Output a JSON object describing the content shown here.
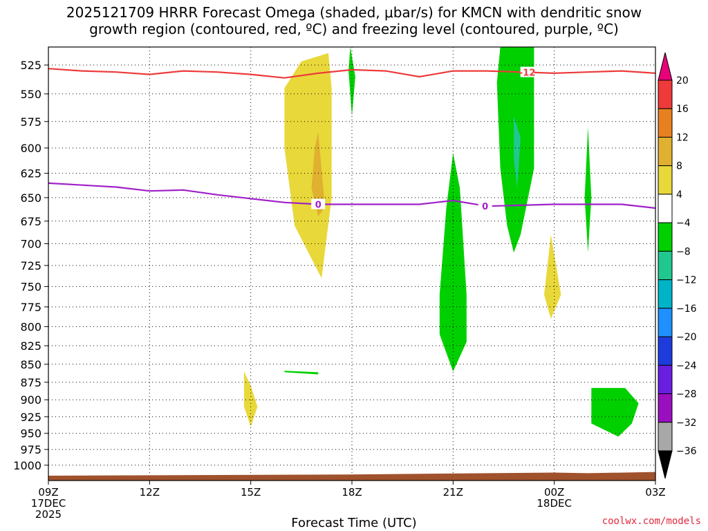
{
  "title_line1": "2025121709 HRRR Forecast Omega (shaded, μbar/s) for KMCN with dendritic snow",
  "title_line2": "growth region (contoured, red, ºC) and freezing level (contoured, purple, ºC)",
  "credit": "coolwx.com/models",
  "chart_data": {
    "type": "heatmap",
    "title": "2025121709 HRRR Forecast Omega (shaded, μbar/s) for KMCN with dendritic snow growth region (contoured, red, ºC) and freezing level (contoured, purple, ºC)",
    "xlabel": "Forecast Time (UTC)",
    "ylabel": "",
    "x_ticks": [
      {
        "hour": 0,
        "lines": [
          "09Z",
          "17DEC",
          "2025"
        ]
      },
      {
        "hour": 3,
        "lines": [
          "12Z"
        ]
      },
      {
        "hour": 6,
        "lines": [
          "15Z"
        ]
      },
      {
        "hour": 9,
        "lines": [
          "18Z"
        ]
      },
      {
        "hour": 12,
        "lines": [
          "21Z"
        ]
      },
      {
        "hour": 15,
        "lines": [
          "00Z",
          "18DEC"
        ]
      },
      {
        "hour": 18,
        "lines": [
          "03Z"
        ]
      }
    ],
    "xlim_hours": [
      0,
      18
    ],
    "y_levels_hpa": [
      525,
      550,
      575,
      600,
      625,
      650,
      675,
      700,
      725,
      750,
      775,
      800,
      825,
      850,
      875,
      900,
      925,
      950,
      975,
      1000
    ],
    "ylim_hpa": [
      510,
      1025
    ],
    "y_scale": "log",
    "grid": true,
    "colorbar": {
      "ticks": [
        "20",
        "16",
        "12",
        "8",
        "4",
        "−4",
        "−8",
        "−12",
        "−16",
        "−20",
        "−24",
        "−28",
        "−32",
        "−36"
      ],
      "colors": [
        "#e8007a",
        "#ee3a3a",
        "#e88020",
        "#e0b030",
        "#e8d83a",
        "#ffffff",
        "#00d000",
        "#20c890",
        "#00b4c8",
        "#1e90ff",
        "#1e3cdc",
        "#6a1ee0",
        "#9a10c0",
        "#a8a8a8",
        "#000000"
      ]
    },
    "contours": [
      {
        "label": "-12",
        "color": "#ee3a3a",
        "label_hour": 14.2,
        "points": [
          [
            0,
            528
          ],
          [
            1,
            530
          ],
          [
            2,
            531
          ],
          [
            3,
            533
          ],
          [
            4,
            530
          ],
          [
            5,
            531
          ],
          [
            6,
            533
          ],
          [
            7,
            536
          ],
          [
            8,
            532
          ],
          [
            9,
            529
          ],
          [
            10,
            530
          ],
          [
            11,
            535
          ],
          [
            12,
            530
          ],
          [
            13,
            530
          ],
          [
            14,
            531
          ],
          [
            15,
            532
          ],
          [
            16,
            531
          ],
          [
            17,
            530
          ],
          [
            18,
            532
          ]
        ]
      },
      {
        "label": "0",
        "color": "#a020c8",
        "label_hour": 12.95,
        "points": [
          [
            0,
            635
          ],
          [
            1,
            637
          ],
          [
            2,
            639
          ],
          [
            3,
            643
          ],
          [
            4,
            642
          ],
          [
            5,
            647
          ],
          [
            6,
            651
          ],
          [
            7,
            655
          ],
          [
            8,
            657
          ],
          [
            9,
            657
          ],
          [
            10,
            657
          ],
          [
            11,
            657
          ],
          [
            12,
            653
          ],
          [
            13,
            659
          ],
          [
            14,
            658
          ],
          [
            15,
            657
          ],
          [
            16,
            657
          ],
          [
            17,
            657
          ],
          [
            18,
            661
          ]
        ]
      }
    ],
    "contour_label_hour_secondary": 8.0,
    "shaded_regions": [
      {
        "class": "4 to 8",
        "color": "#e8d83a",
        "outline": [
          [
            7.0,
            545
          ],
          [
            7.5,
            522
          ],
          [
            8.3,
            515
          ],
          [
            8.4,
            545
          ],
          [
            8.4,
            650
          ],
          [
            8.1,
            740
          ],
          [
            7.3,
            680
          ],
          [
            7.0,
            600
          ]
        ]
      },
      {
        "class": "8 to 12",
        "color": "#e0b030",
        "outline": [
          [
            8.0,
            585
          ],
          [
            8.2,
            660
          ],
          [
            8.0,
            670
          ],
          [
            7.8,
            640
          ],
          [
            7.9,
            600
          ]
        ]
      },
      {
        "class": "4 to 8",
        "color": "#e8d83a",
        "outline": [
          [
            5.8,
            860
          ],
          [
            6.0,
            880
          ],
          [
            6.2,
            910
          ],
          [
            6.0,
            940
          ],
          [
            5.8,
            910
          ],
          [
            5.8,
            880
          ]
        ]
      },
      {
        "class": "4 to 8",
        "color": "#e8d83a",
        "outline": [
          [
            14.9,
            690
          ],
          [
            15.2,
            760
          ],
          [
            14.9,
            790
          ],
          [
            14.7,
            760
          ]
        ]
      },
      {
        "class": "-4 to -8",
        "color": "#00d000",
        "outline": [
          [
            8.95,
            510
          ],
          [
            9.1,
            535
          ],
          [
            9.0,
            570
          ],
          [
            8.9,
            530
          ]
        ]
      },
      {
        "class": "-4 to -8",
        "color": "#00d000",
        "outline": [
          [
            12.0,
            605
          ],
          [
            12.2,
            640
          ],
          [
            12.4,
            760
          ],
          [
            12.4,
            820
          ],
          [
            12.0,
            860
          ],
          [
            11.6,
            810
          ],
          [
            11.6,
            760
          ],
          [
            11.8,
            660
          ]
        ]
      },
      {
        "class": "-4 to -8",
        "color": "#00d000",
        "outline": [
          [
            13.4,
            510
          ],
          [
            14.4,
            510
          ],
          [
            14.4,
            620
          ],
          [
            14.0,
            690
          ],
          [
            13.8,
            710
          ],
          [
            13.6,
            680
          ],
          [
            13.4,
            620
          ],
          [
            13.3,
            540
          ]
        ]
      },
      {
        "class": "-8 to -12",
        "color": "#20c890",
        "outline": [
          [
            13.8,
            570
          ],
          [
            14.0,
            590
          ],
          [
            13.9,
            640
          ],
          [
            13.8,
            610
          ]
        ]
      },
      {
        "class": "-4 to -8",
        "color": "#00d000",
        "outline": [
          [
            16.0,
            580
          ],
          [
            16.1,
            650
          ],
          [
            16.0,
            710
          ],
          [
            15.9,
            650
          ]
        ]
      },
      {
        "class": "-4 to -8",
        "color": "#00d000",
        "outline": [
          [
            16.1,
            883
          ],
          [
            17.1,
            883
          ],
          [
            17.5,
            905
          ],
          [
            17.3,
            935
          ],
          [
            16.9,
            955
          ],
          [
            16.1,
            935
          ]
        ]
      },
      {
        "class": "-4 to -8",
        "color": "#00d000",
        "outline": [
          [
            7.0,
            859
          ],
          [
            8.0,
            861
          ],
          [
            8.0,
            864
          ],
          [
            7.0,
            861
          ]
        ]
      }
    ],
    "surface_terrain": {
      "color": "#a0522d",
      "top_pressure_hpa": [
        [
          0,
          1017
        ],
        [
          9,
          1015
        ],
        [
          15,
          1012
        ],
        [
          16,
          1013
        ],
        [
          18,
          1011
        ]
      ]
    }
  },
  "x_axis_label": "Forecast Time (UTC)"
}
